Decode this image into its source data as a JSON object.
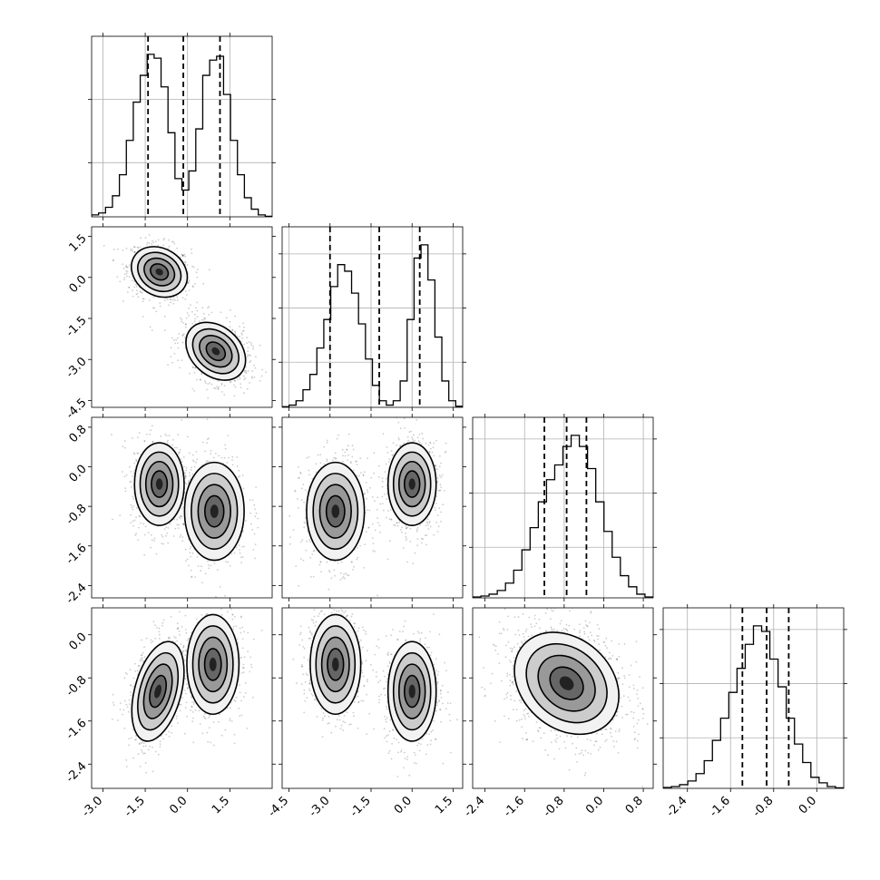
{
  "chart_data": {
    "type": "corner",
    "n_params": 4,
    "axis_ranges": [
      [
        -3.4,
        3.0
      ],
      [
        -4.75,
        1.85
      ],
      [
        -2.65,
        1.0
      ],
      [
        -2.85,
        0.5
      ]
    ],
    "ticks": [
      [
        "-3.0",
        "-1.5",
        "0.0",
        "1.5"
      ],
      [
        "-4.5",
        "-3.0",
        "-1.5",
        "0.0",
        "1.5"
      ],
      [
        "-2.4",
        "-1.6",
        "-0.8",
        "0.0",
        "0.8"
      ],
      [
        "-2.4",
        "-1.6",
        "-0.8",
        "0.0"
      ]
    ],
    "quantiles": [
      [
        -1.4,
        -0.15,
        1.15
      ],
      [
        -3.0,
        -1.2,
        0.28
      ],
      [
        -1.2,
        -0.75,
        -0.35
      ],
      [
        -1.38,
        -0.93,
        -0.52
      ]
    ],
    "histograms": [
      [
        1,
        2,
        5,
        11,
        22,
        40,
        60,
        74,
        85,
        83,
        68,
        44,
        20,
        14,
        24,
        46,
        74,
        82,
        84,
        64,
        40,
        22,
        10,
        4,
        1,
        0.3
      ],
      [
        0.3,
        1,
        3,
        8,
        15,
        27,
        40,
        55,
        65,
        62,
        52,
        38,
        22,
        10,
        3,
        1,
        3,
        12,
        40,
        68,
        74,
        58,
        32,
        12,
        3,
        0.5
      ],
      [
        0.5,
        1,
        2,
        4,
        8,
        15,
        26,
        38,
        52,
        64,
        72,
        82,
        88,
        82,
        70,
        52,
        36,
        22,
        12,
        6,
        2,
        0.5
      ],
      [
        0.5,
        1,
        2,
        4,
        8,
        15,
        26,
        38,
        52,
        65,
        78,
        88,
        85,
        70,
        55,
        38,
        24,
        14,
        6,
        3,
        1,
        0.3
      ]
    ],
    "hist_gridlines": [
      [
        0.3,
        0.65
      ],
      [
        0.25,
        0.55,
        0.85
      ],
      [
        0.28,
        0.58,
        0.88
      ],
      [
        0.28,
        0.58,
        0.88
      ]
    ],
    "modes": {
      "1-0": [
        {
          "x": -1.0,
          "y": 0.2,
          "sx": 0.45,
          "sy": 0.42,
          "rho": -0.2,
          "w": 0.5
        },
        {
          "x": 1.0,
          "y": -2.7,
          "sx": 0.48,
          "sy": 0.48,
          "rho": -0.3,
          "w": 0.5
        }
      ],
      "2-0": [
        {
          "x": -1.0,
          "y": -0.35,
          "sx": 0.4,
          "sy": 0.38,
          "rho": 0.0,
          "w": 0.5
        },
        {
          "x": 0.95,
          "y": -0.9,
          "sx": 0.48,
          "sy": 0.45,
          "rho": 0.0,
          "w": 0.5
        }
      ],
      "2-1": [
        {
          "x": -2.8,
          "y": -0.9,
          "sx": 0.48,
          "sy": 0.45,
          "rho": 0.0,
          "w": 0.5
        },
        {
          "x": 0.0,
          "y": -0.35,
          "sx": 0.4,
          "sy": 0.38,
          "rho": 0.0,
          "w": 0.5
        }
      ],
      "3-0": [
        {
          "x": -1.05,
          "y": -1.05,
          "sx": 0.42,
          "sy": 0.42,
          "rho": 0.4,
          "w": 0.5
        },
        {
          "x": 0.9,
          "y": -0.55,
          "sx": 0.42,
          "sy": 0.42,
          "rho": 0.0,
          "w": 0.5
        }
      ],
      "3-1": [
        {
          "x": -2.8,
          "y": -0.55,
          "sx": 0.42,
          "sy": 0.42,
          "rho": 0.0,
          "w": 0.5
        },
        {
          "x": 0.0,
          "y": -1.05,
          "sx": 0.4,
          "sy": 0.42,
          "rho": 0.0,
          "w": 0.5
        }
      ],
      "3-2": [
        {
          "x": -0.75,
          "y": -0.9,
          "sx": 0.48,
          "sy": 0.43,
          "rho": -0.25,
          "w": 1.0
        }
      ]
    }
  }
}
